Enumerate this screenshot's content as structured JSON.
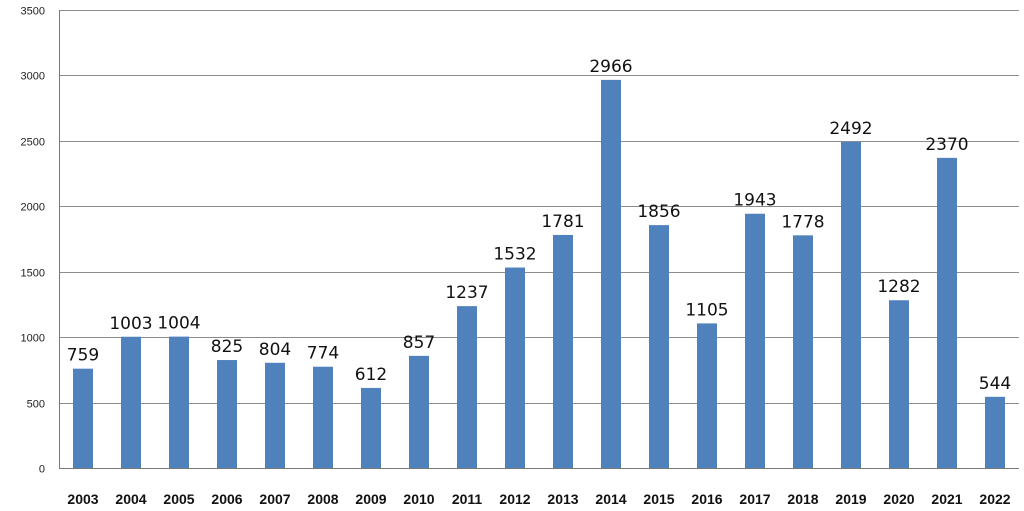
{
  "chart_data": {
    "type": "bar",
    "title": "",
    "xlabel": "",
    "ylabel": "",
    "categories": [
      "2003",
      "2004",
      "2005",
      "2006",
      "2007",
      "2008",
      "2009",
      "2010",
      "2011",
      "2012",
      "2013",
      "2014",
      "2015",
      "2016",
      "2017",
      "2018",
      "2019",
      "2020",
      "2021",
      "2022"
    ],
    "values": [
      759,
      1003,
      1004,
      825,
      804,
      774,
      612,
      857,
      1237,
      1532,
      1781,
      2966,
      1856,
      1105,
      1943,
      1778,
      2492,
      1282,
      2370,
      544
    ],
    "ylim": [
      0,
      3500
    ],
    "y_ticks": [
      0,
      500,
      1000,
      1500,
      2000,
      2500,
      3000,
      3500
    ],
    "grid": true,
    "legend": "none",
    "bar_color": "#4f81bd",
    "data_labels": true
  }
}
